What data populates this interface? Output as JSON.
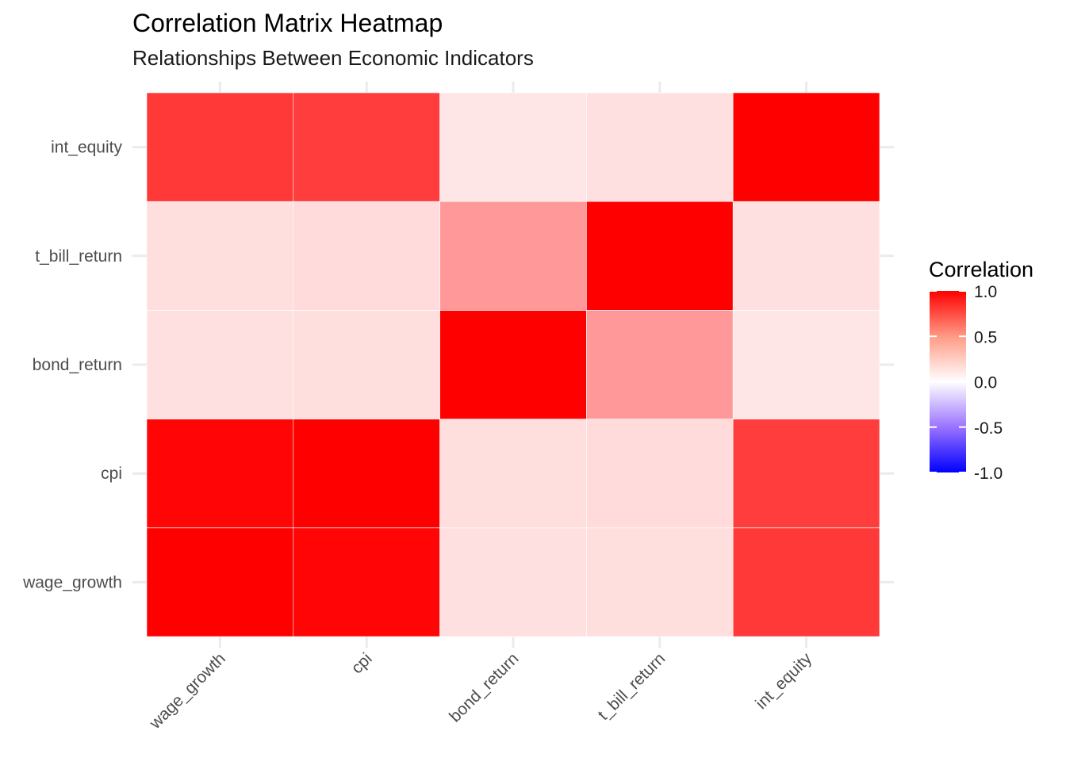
{
  "chart_data": {
    "type": "heatmap",
    "title": "Correlation Matrix Heatmap",
    "subtitle": "Relationships Between Economic Indicators",
    "x_categories": [
      "wage_growth",
      "cpi",
      "bond_return",
      "t_bill_return",
      "int_equity"
    ],
    "y_categories": [
      "wage_growth",
      "cpi",
      "bond_return",
      "t_bill_return",
      "int_equity"
    ],
    "values": [
      [
        1.0,
        0.98,
        0.12,
        0.13,
        0.78
      ],
      [
        0.98,
        1.0,
        0.13,
        0.14,
        0.76
      ],
      [
        0.12,
        0.13,
        1.0,
        0.4,
        0.1
      ],
      [
        0.13,
        0.14,
        0.4,
        1.0,
        0.12
      ],
      [
        0.78,
        0.76,
        0.1,
        0.12,
        1.0
      ]
    ],
    "legend": {
      "title": "Correlation",
      "placement": "right",
      "breaks": [
        1.0,
        0.5,
        0.0,
        -0.5,
        -1.0
      ],
      "labels": [
        "1.0",
        "0.5",
        "0.0",
        "-0.5",
        "-1.0"
      ],
      "limits": [
        -1,
        1
      ]
    },
    "colors": {
      "low": "#0000ff",
      "mid": "#ffffff",
      "high": "#ff0000"
    },
    "xlabel": "",
    "ylabel": "",
    "grid": true
  }
}
